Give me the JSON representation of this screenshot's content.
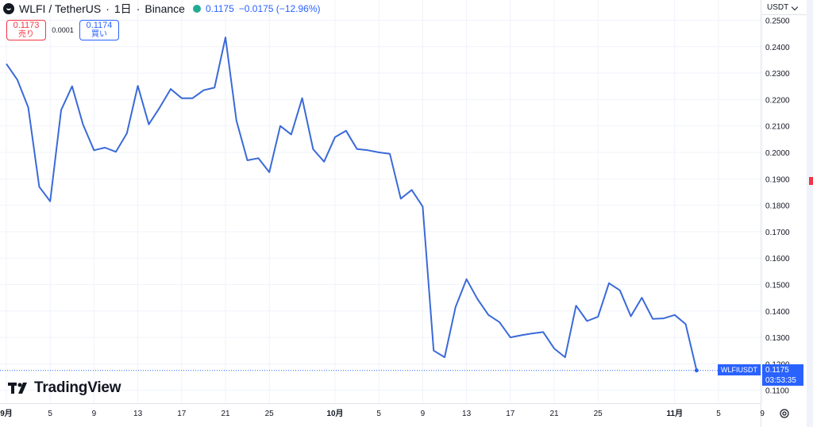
{
  "header": {
    "symbol": "WLFI / TetherUS",
    "interval": "1日",
    "exchange": "Binance",
    "separator": "·",
    "price": "0.1175",
    "change": "−0.0175 (−12.96%)"
  },
  "trade": {
    "sell_price": "0.1173",
    "sell_label": "売り",
    "spread": "0.0001",
    "buy_price": "0.1174",
    "buy_label": "買い"
  },
  "currency": "USDT",
  "watermark": "TradingView",
  "last_price": {
    "symbol_label": "WLFIUSDT",
    "price": "0.1175",
    "countdown": "03:53:35"
  },
  "colors": {
    "line": "#2962ff",
    "line_stroke": "#3a6ad8",
    "grid": "#f0f3fa",
    "text": "#131722",
    "sell": "#f23645",
    "buy": "#2962ff"
  },
  "icons": {
    "logo": "wlfi-logo-icon",
    "status": "market-open-dot-icon",
    "settings": "settings-icon",
    "dropdown": "chevron-down-icon"
  },
  "chart_data": {
    "type": "line",
    "title": "",
    "xlabel": "",
    "ylabel": "",
    "ylim": [
      0.1045,
      0.25
    ],
    "y_ticks": [
      "0.2500",
      "0.2400",
      "0.2300",
      "0.2200",
      "0.2100",
      "0.2000",
      "0.1900",
      "0.1800",
      "0.1700",
      "0.1600",
      "0.1500",
      "0.1400",
      "0.1300",
      "0.1200",
      "0.1100"
    ],
    "x_tick_labels": [
      {
        "label": "9月",
        "day": 1
      },
      {
        "label": "5",
        "day": 5
      },
      {
        "label": "9",
        "day": 9
      },
      {
        "label": "13",
        "day": 13
      },
      {
        "label": "17",
        "day": 17
      },
      {
        "label": "21",
        "day": 21
      },
      {
        "label": "25",
        "day": 25
      },
      {
        "label": "10月",
        "day": 31
      },
      {
        "label": "5",
        "day": 35
      },
      {
        "label": "9",
        "day": 39
      },
      {
        "label": "13",
        "day": 43
      },
      {
        "label": "17",
        "day": 47
      },
      {
        "label": "21",
        "day": 51
      },
      {
        "label": "25",
        "day": 55
      },
      {
        "label": "11月",
        "day": 62
      },
      {
        "label": "5",
        "day": 66
      },
      {
        "label": "9",
        "day": 70
      }
    ],
    "xlim": [
      1,
      72
    ],
    "grid": true,
    "series": [
      {
        "x": [
          1,
          2,
          3,
          4,
          5,
          6,
          7,
          8,
          9,
          10,
          11,
          12,
          13,
          14,
          15,
          16,
          17,
          18,
          19,
          20,
          21,
          22,
          23,
          24,
          25,
          26,
          27,
          28,
          29,
          30,
          31,
          32,
          33,
          34,
          35,
          36,
          37,
          38,
          39,
          40,
          41,
          42,
          43,
          44,
          45,
          46,
          47,
          48,
          49,
          50,
          51,
          52,
          53,
          54,
          55,
          56,
          57,
          58,
          59,
          60,
          61,
          62,
          63
        ],
        "values": [
          0.2335,
          0.2275,
          0.217,
          0.187,
          0.1815,
          0.216,
          0.225,
          0.2105,
          0.2008,
          0.2018,
          0.2002,
          0.2072,
          0.2252,
          0.2106,
          0.217,
          0.224,
          0.2205,
          0.2205,
          0.2235,
          0.2245,
          0.2435,
          0.212,
          0.197,
          0.1978,
          0.1925,
          0.21,
          0.2068,
          0.2205,
          0.2012,
          0.1965,
          0.2058,
          0.2082,
          0.2013,
          0.2008,
          0.2,
          0.1995,
          0.1825,
          0.1858,
          0.1795,
          0.125,
          0.1225,
          0.1415,
          0.152,
          0.1445,
          0.1385,
          0.1358,
          0.13,
          0.1308,
          0.1315,
          0.132,
          0.1258,
          0.1225,
          0.142,
          0.1362,
          0.1378,
          0.1505,
          0.1478,
          0.138,
          0.145,
          0.137,
          0.1372,
          0.1385,
          0.135
        ]
      }
    ],
    "last_point": {
      "x": 64,
      "value": 0.1175
    }
  }
}
